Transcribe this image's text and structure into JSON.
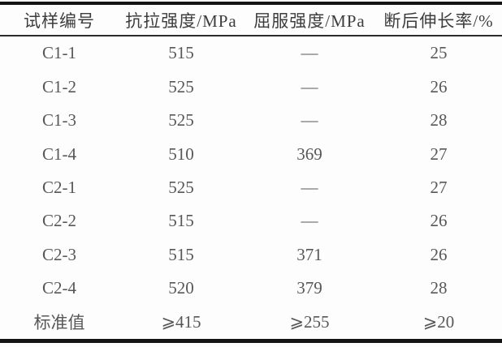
{
  "table": {
    "title_hint": "mechanical-test-results-table",
    "columns": [
      "试样编号",
      "抗拉强度/MPa",
      "屈服强度/MPa",
      "断后伸长率/%"
    ],
    "rows": [
      [
        "C1-1",
        "515",
        "—",
        "25"
      ],
      [
        "C1-2",
        "525",
        "—",
        "26"
      ],
      [
        "C1-3",
        "525",
        "—",
        "28"
      ],
      [
        "C1-4",
        "510",
        "369",
        "27"
      ],
      [
        "C2-1",
        "525",
        "—",
        "27"
      ],
      [
        "C2-2",
        "515",
        "—",
        "26"
      ],
      [
        "C2-3",
        "515",
        "371",
        "26"
      ],
      [
        "C2-4",
        "520",
        "379",
        "28"
      ],
      [
        "标准值",
        "⩾415",
        "⩾255",
        "⩾20"
      ]
    ]
  },
  "colors": {
    "background": "#fdfdfd",
    "rule": "#141414",
    "header_text": "#3d3d3d",
    "body_text": "#575757"
  },
  "chart_data": {
    "type": "table",
    "categories": [
      "C1-1",
      "C1-2",
      "C1-3",
      "C1-4",
      "C2-1",
      "C2-2",
      "C2-3",
      "C2-4",
      "标准值"
    ],
    "series": [
      {
        "name": "抗拉强度/MPa",
        "values": [
          "515",
          "525",
          "525",
          "510",
          "525",
          "515",
          "515",
          "520",
          "⩾415"
        ]
      },
      {
        "name": "屈服强度/MPa",
        "values": [
          "—",
          "—",
          "—",
          "369",
          "—",
          "—",
          "371",
          "379",
          "⩾255"
        ]
      },
      {
        "name": "断后伸长率/%",
        "values": [
          "25",
          "26",
          "28",
          "27",
          "27",
          "26",
          "26",
          "28",
          "⩾20"
        ]
      }
    ]
  }
}
